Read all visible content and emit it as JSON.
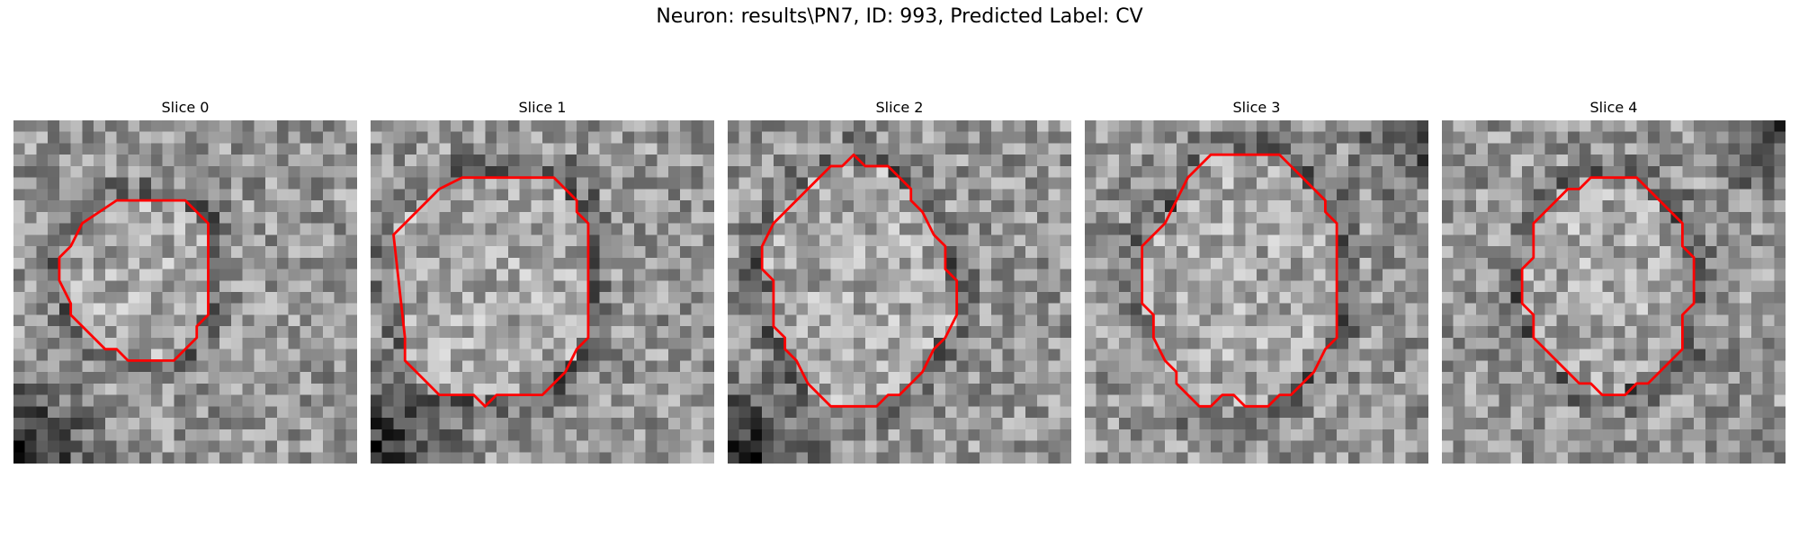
{
  "figure": {
    "title": "Neuron: results\\PN7, ID: 993, Predicted Label: CV"
  },
  "colors": {
    "contour": "#ff0000",
    "background": "#ffffff"
  },
  "panels": [
    {
      "title": "Slice 0",
      "seed": 11,
      "dark_corner": "bottom-left",
      "contour": [
        [
          12,
          7
        ],
        [
          15,
          7
        ],
        [
          17,
          9
        ],
        [
          17,
          17
        ],
        [
          16,
          18
        ],
        [
          16,
          19
        ],
        [
          14,
          21
        ],
        [
          10,
          21
        ],
        [
          9,
          20
        ],
        [
          8,
          20
        ],
        [
          5,
          17
        ],
        [
          5,
          16
        ],
        [
          4,
          14
        ],
        [
          4,
          12
        ],
        [
          5,
          11
        ],
        [
          6,
          9
        ],
        [
          9,
          7
        ]
      ]
    },
    {
      "title": "Slice 1",
      "seed": 23,
      "dark_corner": "bottom-left",
      "contour": [
        [
          11,
          5
        ],
        [
          16,
          5
        ],
        [
          18,
          7
        ],
        [
          18,
          8
        ],
        [
          19,
          9
        ],
        [
          19,
          19
        ],
        [
          18,
          20
        ],
        [
          17,
          22
        ],
        [
          16,
          23
        ],
        [
          15,
          24
        ],
        [
          11,
          24
        ],
        [
          10,
          25
        ],
        [
          9,
          24
        ],
        [
          6,
          24
        ],
        [
          5,
          23
        ],
        [
          4,
          22
        ],
        [
          3,
          21
        ],
        [
          3,
          19
        ],
        [
          2,
          10
        ],
        [
          3,
          9
        ],
        [
          4,
          8
        ],
        [
          6,
          6
        ],
        [
          8,
          5
        ]
      ]
    },
    {
      "title": "Slice 2",
      "seed": 37,
      "dark_corner": "bottom-left",
      "contour": [
        [
          10,
          4
        ],
        [
          11,
          3
        ],
        [
          12,
          4
        ],
        [
          14,
          4
        ],
        [
          16,
          6
        ],
        [
          16,
          7
        ],
        [
          17,
          8
        ],
        [
          18,
          10
        ],
        [
          19,
          11
        ],
        [
          19,
          13
        ],
        [
          20,
          14
        ],
        [
          20,
          17
        ],
        [
          19,
          19
        ],
        [
          18,
          20
        ],
        [
          17,
          22
        ],
        [
          16,
          23
        ],
        [
          15,
          24
        ],
        [
          14,
          24
        ],
        [
          13,
          25
        ],
        [
          9,
          25
        ],
        [
          7,
          23
        ],
        [
          6,
          21
        ],
        [
          5,
          20
        ],
        [
          5,
          19
        ],
        [
          4,
          18
        ],
        [
          4,
          14
        ],
        [
          3,
          13
        ],
        [
          3,
          11
        ],
        [
          4,
          9
        ],
        [
          5,
          8
        ],
        [
          6,
          7
        ],
        [
          8,
          5
        ],
        [
          9,
          4
        ]
      ]
    },
    {
      "title": "Slice 3",
      "seed": 51,
      "dark_corner": "top-right",
      "contour": [
        [
          11,
          3
        ],
        [
          17,
          3
        ],
        [
          18,
          4
        ],
        [
          19,
          5
        ],
        [
          21,
          7
        ],
        [
          21,
          8
        ],
        [
          22,
          9
        ],
        [
          22,
          10
        ],
        [
          22,
          19
        ],
        [
          21,
          20
        ],
        [
          20,
          22
        ],
        [
          19,
          23
        ],
        [
          18,
          24
        ],
        [
          17,
          24
        ],
        [
          16,
          25
        ],
        [
          14,
          25
        ],
        [
          13,
          24
        ],
        [
          12,
          24
        ],
        [
          11,
          25
        ],
        [
          10,
          25
        ],
        [
          8,
          23
        ],
        [
          8,
          22
        ],
        [
          7,
          21
        ],
        [
          6,
          19
        ],
        [
          6,
          17
        ],
        [
          5,
          16
        ],
        [
          5,
          11
        ],
        [
          6,
          10
        ],
        [
          7,
          9
        ],
        [
          8,
          7
        ],
        [
          9,
          5
        ],
        [
          10,
          4
        ]
      ]
    },
    {
      "title": "Slice 4",
      "seed": 73,
      "dark_corner": "top-right",
      "contour": [
        [
          14,
          5
        ],
        [
          17,
          5
        ],
        [
          18,
          6
        ],
        [
          19,
          7
        ],
        [
          20,
          8
        ],
        [
          21,
          9
        ],
        [
          21,
          11
        ],
        [
          22,
          12
        ],
        [
          22,
          16
        ],
        [
          21,
          17
        ],
        [
          21,
          20
        ],
        [
          20,
          21
        ],
        [
          19,
          22
        ],
        [
          18,
          23
        ],
        [
          17,
          23
        ],
        [
          16,
          24
        ],
        [
          14,
          24
        ],
        [
          13,
          23
        ],
        [
          12,
          23
        ],
        [
          11,
          22
        ],
        [
          10,
          21
        ],
        [
          9,
          20
        ],
        [
          8,
          19
        ],
        [
          8,
          17
        ],
        [
          7,
          16
        ],
        [
          7,
          13
        ],
        [
          8,
          12
        ],
        [
          8,
          9
        ],
        [
          9,
          8
        ],
        [
          10,
          7
        ],
        [
          11,
          6
        ],
        [
          12,
          6
        ],
        [
          13,
          5
        ]
      ]
    }
  ]
}
